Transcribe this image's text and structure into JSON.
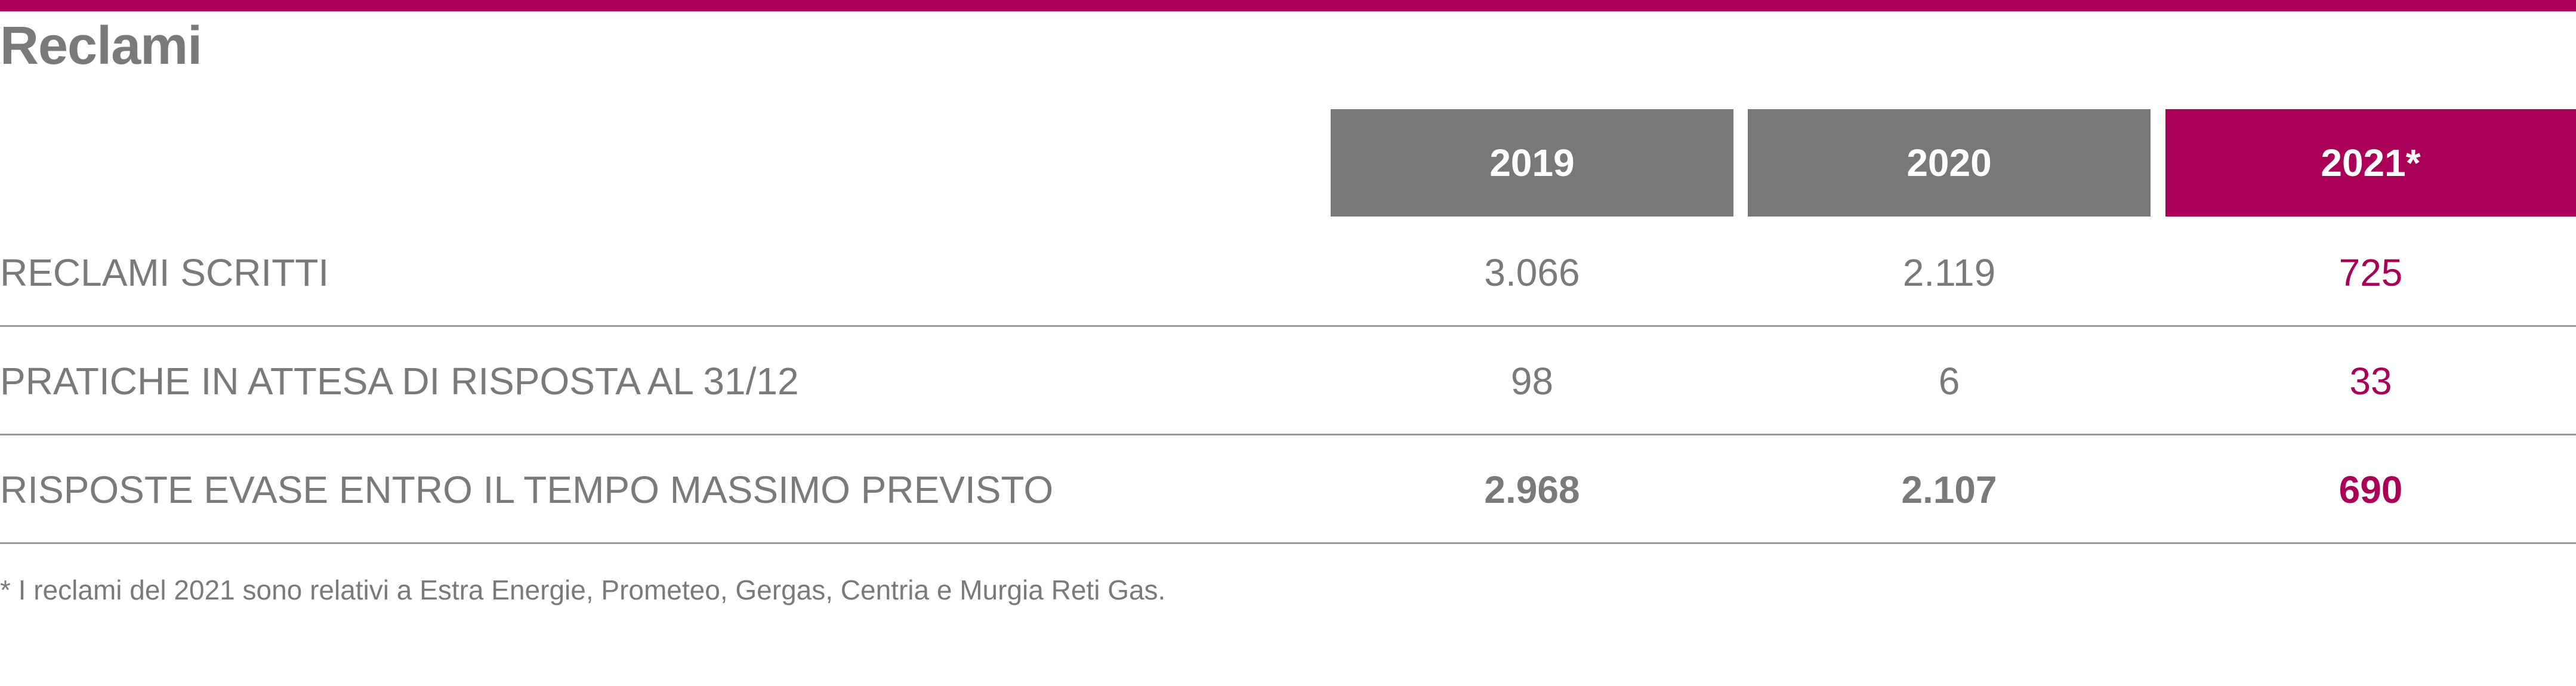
{
  "title": "Reclami",
  "colors": {
    "accent": "#ab0058",
    "header_gray": "#78787a",
    "text_gray": "#7a7a7c"
  },
  "table": {
    "columns": [
      "2019",
      "2020",
      "2021*"
    ],
    "rows": [
      {
        "label": "RECLAMI SCRITTI",
        "values": [
          "3.066",
          "2.119",
          "725"
        ]
      },
      {
        "label": "PRATICHE IN ATTESA DI RISPOSTA AL 31/12",
        "values": [
          "98",
          "6",
          "33"
        ]
      },
      {
        "label": "RISPOSTE EVASE ENTRO IL TEMPO MASSIMO PREVISTO",
        "values": [
          "2.968",
          "2.107",
          "690"
        ]
      }
    ]
  },
  "footnote": "* I reclami del 2021 sono relativi a Estra Energie, Prometeo, Gergas, Centria e Murgia Reti Gas."
}
